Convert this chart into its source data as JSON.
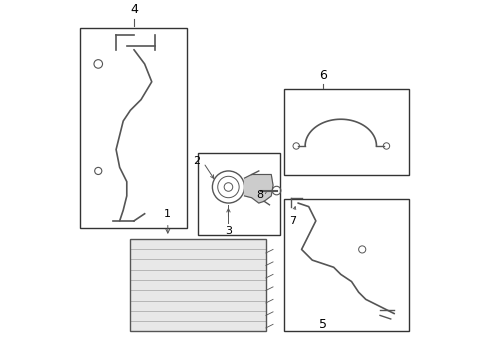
{
  "bg_color": "#ffffff",
  "line_color": "#555555",
  "box_color": "#333333",
  "label_color": "#000000",
  "figsize": [
    4.89,
    3.6
  ],
  "dpi": 100
}
